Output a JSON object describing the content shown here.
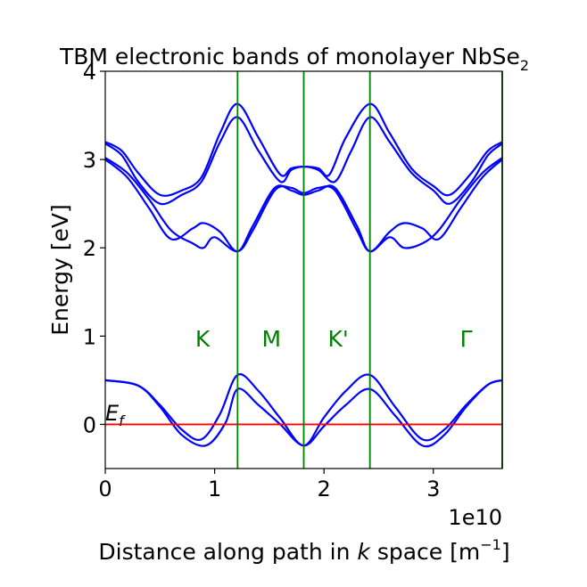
{
  "chart_data": {
    "type": "line",
    "title": "TBM electronic bands of monolayer NbSe",
    "title_sub": "2",
    "xlabel_pre": "Distance along path in ",
    "xlabel_k": "k",
    "xlabel_post": " space [m",
    "xlabel_exp": "−1",
    "xlabel_close": "]",
    "ylabel": "Energy [eV]",
    "x_offset_label": "1e10",
    "x_unit_scale": 10000000000.0,
    "xlim": [
      0,
      3.63
    ],
    "ylim": [
      -0.5,
      4
    ],
    "xticks": [
      "0",
      "1",
      "2",
      "3"
    ],
    "xtick_values": [
      0,
      1,
      2,
      3
    ],
    "yticks": [
      "0",
      "1",
      "2",
      "3",
      "4"
    ],
    "ytick_values": [
      0,
      1,
      2,
      3,
      4
    ],
    "line_color": "#0000ff",
    "fermi_color": "#ff0000",
    "symmetry_color": "#008000",
    "fermi_level": 0,
    "fermi_label": "E",
    "fermi_label_sub": "f",
    "symmetry_lines_x": [
      1.21,
      1.815,
      2.42,
      3.63
    ],
    "symmetry_points": [
      {
        "label": "K",
        "x": 0.89,
        "y": 0.88
      },
      {
        "label": "M",
        "x": 1.52,
        "y": 0.88
      },
      {
        "label": "K'",
        "x": 2.13,
        "y": 0.88
      },
      {
        "label": "Γ",
        "x": 3.3,
        "y": 0.88
      }
    ],
    "series": [
      {
        "points": [
          [
            0,
            0.5
          ],
          [
            0.3,
            0.44
          ],
          [
            0.5,
            0.2
          ],
          [
            0.7,
            -0.12
          ],
          [
            0.92,
            -0.24
          ],
          [
            1.1,
            0.02
          ],
          [
            1.21,
            0.4
          ],
          [
            1.4,
            0.22
          ],
          [
            1.6,
            0.0
          ],
          [
            1.815,
            -0.24
          ],
          [
            2.0,
            -0.02
          ],
          [
            2.2,
            0.22
          ],
          [
            2.42,
            0.4
          ],
          [
            2.65,
            0.1
          ],
          [
            2.9,
            -0.24
          ],
          [
            3.1,
            -0.12
          ],
          [
            3.3,
            0.2
          ],
          [
            3.5,
            0.45
          ],
          [
            3.63,
            0.5
          ]
        ]
      },
      {
        "points": [
          [
            0,
            0.5
          ],
          [
            0.3,
            0.44
          ],
          [
            0.5,
            0.22
          ],
          [
            0.7,
            -0.06
          ],
          [
            0.88,
            -0.17
          ],
          [
            1.05,
            0.12
          ],
          [
            1.21,
            0.56
          ],
          [
            1.4,
            0.38
          ],
          [
            1.6,
            0.07
          ],
          [
            1.815,
            -0.24
          ],
          [
            2.0,
            0.08
          ],
          [
            2.2,
            0.38
          ],
          [
            2.42,
            0.56
          ],
          [
            2.65,
            0.2
          ],
          [
            2.9,
            -0.17
          ],
          [
            3.1,
            -0.06
          ],
          [
            3.3,
            0.22
          ],
          [
            3.5,
            0.45
          ],
          [
            3.63,
            0.5
          ]
        ]
      },
      {
        "points": [
          [
            0,
            3.2
          ],
          [
            0.15,
            3.1
          ],
          [
            0.3,
            2.85
          ],
          [
            0.5,
            2.6
          ],
          [
            0.7,
            2.65
          ],
          [
            0.88,
            2.8
          ],
          [
            1.05,
            3.3
          ],
          [
            1.21,
            3.63
          ],
          [
            1.4,
            3.25
          ],
          [
            1.6,
            2.83
          ],
          [
            1.7,
            2.9
          ],
          [
            1.815,
            2.92
          ],
          [
            1.95,
            2.9
          ],
          [
            2.05,
            2.83
          ],
          [
            2.2,
            3.25
          ],
          [
            2.42,
            3.63
          ],
          [
            2.6,
            3.3
          ],
          [
            2.8,
            2.9
          ],
          [
            3.0,
            2.7
          ],
          [
            3.15,
            2.6
          ],
          [
            3.35,
            2.85
          ],
          [
            3.5,
            3.1
          ],
          [
            3.63,
            3.2
          ]
        ]
      },
      {
        "points": [
          [
            0,
            3.18
          ],
          [
            0.15,
            3.05
          ],
          [
            0.3,
            2.75
          ],
          [
            0.5,
            2.5
          ],
          [
            0.7,
            2.6
          ],
          [
            0.88,
            2.75
          ],
          [
            1.05,
            3.2
          ],
          [
            1.21,
            3.48
          ],
          [
            1.4,
            3.1
          ],
          [
            1.6,
            2.75
          ],
          [
            1.7,
            2.88
          ],
          [
            1.815,
            2.92
          ],
          [
            1.95,
            2.88
          ],
          [
            2.1,
            2.75
          ],
          [
            2.25,
            3.1
          ],
          [
            2.42,
            3.48
          ],
          [
            2.6,
            3.2
          ],
          [
            2.8,
            2.85
          ],
          [
            3.0,
            2.65
          ],
          [
            3.15,
            2.5
          ],
          [
            3.35,
            2.75
          ],
          [
            3.5,
            3.05
          ],
          [
            3.63,
            3.18
          ]
        ]
      },
      {
        "points": [
          [
            0,
            3.02
          ],
          [
            0.2,
            2.85
          ],
          [
            0.4,
            2.55
          ],
          [
            0.6,
            2.2
          ],
          [
            0.8,
            2.05
          ],
          [
            0.9,
            2.0
          ],
          [
            1.0,
            2.12
          ],
          [
            1.21,
            1.96
          ],
          [
            1.35,
            2.2
          ],
          [
            1.55,
            2.65
          ],
          [
            1.7,
            2.68
          ],
          [
            1.815,
            2.62
          ],
          [
            1.95,
            2.68
          ],
          [
            2.1,
            2.65
          ],
          [
            2.3,
            2.2
          ],
          [
            2.42,
            1.96
          ],
          [
            2.6,
            2.12
          ],
          [
            2.73,
            2.0
          ],
          [
            2.9,
            2.05
          ],
          [
            3.05,
            2.2
          ],
          [
            3.25,
            2.55
          ],
          [
            3.45,
            2.85
          ],
          [
            3.63,
            3.02
          ]
        ]
      },
      {
        "points": [
          [
            0,
            3.0
          ],
          [
            0.2,
            2.8
          ],
          [
            0.4,
            2.45
          ],
          [
            0.6,
            2.1
          ],
          [
            0.8,
            2.22
          ],
          [
            0.9,
            2.28
          ],
          [
            1.05,
            2.18
          ],
          [
            1.21,
            1.96
          ],
          [
            1.35,
            2.25
          ],
          [
            1.55,
            2.68
          ],
          [
            1.7,
            2.65
          ],
          [
            1.815,
            2.6
          ],
          [
            1.95,
            2.65
          ],
          [
            2.1,
            2.68
          ],
          [
            2.3,
            2.25
          ],
          [
            2.42,
            1.96
          ],
          [
            2.6,
            2.18
          ],
          [
            2.73,
            2.28
          ],
          [
            2.9,
            2.22
          ],
          [
            3.05,
            2.1
          ],
          [
            3.25,
            2.45
          ],
          [
            3.45,
            2.8
          ],
          [
            3.63,
            3.0
          ]
        ]
      }
    ]
  }
}
